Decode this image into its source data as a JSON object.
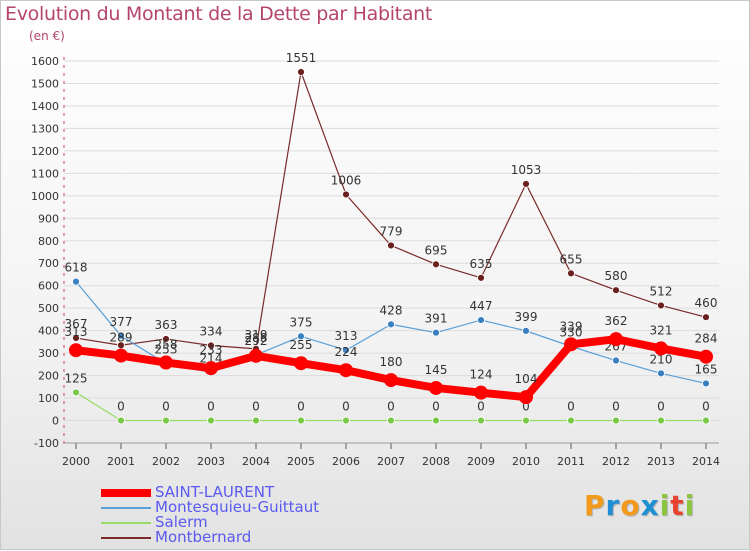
{
  "title": "Evolution du Montant de la Dette par Habitant",
  "unit": "(en €)",
  "logo": {
    "letters": [
      "P",
      "r",
      "o",
      "x",
      "i",
      "t",
      "i"
    ],
    "colors": [
      "#f39a1c",
      "#1e8fd5",
      "#f39a1c",
      "#1e8fd5",
      "#8cc63f",
      "#e8432c",
      "#8cc63f"
    ]
  },
  "chart_data": {
    "type": "line",
    "x": [
      "2000",
      "2001",
      "2002",
      "2003",
      "2004",
      "2005",
      "2006",
      "2007",
      "2008",
      "2009",
      "2010",
      "2011",
      "2012",
      "2013",
      "2014"
    ],
    "ylim": [
      -100,
      1600
    ],
    "yticks": [
      "-100",
      "0",
      "100",
      "200",
      "300",
      "400",
      "500",
      "600",
      "700",
      "800",
      "900",
      "1000",
      "1100",
      "1200",
      "1300",
      "1400",
      "1500",
      "1600"
    ],
    "legend_position": "bottom-left",
    "series": [
      {
        "name": "Montbernard",
        "color": "#7a2a2a",
        "marker": "#6b2020",
        "width": 1.2,
        "values": [
          367,
          335,
          363,
          334,
          319,
          1551,
          1006,
          779,
          695,
          635,
          1053,
          655,
          580,
          512,
          460
        ],
        "labels": [
          "367",
          "",
          "363",
          "334",
          "319",
          "1551",
          "1006",
          "779",
          "695",
          "635",
          "1053",
          "655",
          "580",
          "512",
          "460"
        ],
        "label_pos": "above"
      },
      {
        "name": "Montesquieu-Guittaut",
        "color": "#5aa0d8",
        "marker": "#3a7fc0",
        "width": 1.2,
        "values": [
          618,
          377,
          253,
          214,
          292,
          375,
          313,
          428,
          391,
          447,
          399,
          330,
          267,
          210,
          165
        ],
        "labels": [
          "618",
          "377",
          "253",
          "214",
          "292",
          "375",
          "313",
          "428",
          "391",
          "447",
          "399",
          "330",
          "267",
          "210",
          "165"
        ],
        "label_pos": "above"
      },
      {
        "name": "Salerm",
        "color": "#98dc6a",
        "marker": "#7ac848",
        "width": 1.2,
        "values": [
          125,
          0,
          0,
          0,
          0,
          0,
          0,
          0,
          0,
          0,
          0,
          0,
          0,
          0,
          0
        ],
        "labels": [
          "125",
          "0",
          "0",
          "0",
          "0",
          "0",
          "0",
          "0",
          "0",
          "0",
          "0",
          "0",
          "0",
          "0",
          "0"
        ],
        "label_pos": "above"
      },
      {
        "name": "SAINT-LAURENT",
        "color": "#ff0000",
        "marker": "#ff0000",
        "width": 8,
        "values": [
          313,
          289,
          258,
          233,
          288,
          255,
          224,
          180,
          145,
          124,
          104,
          339,
          362,
          321,
          284
        ],
        "labels": [
          "313",
          "289",
          "258",
          "233",
          "288",
          "255",
          "224",
          "180",
          "145",
          "124",
          "104",
          "339",
          "362",
          "321",
          "284"
        ],
        "label_pos": "above"
      }
    ],
    "legend": [
      "SAINT-LAURENT",
      "Montesquieu-Guittaut",
      "Salerm",
      "Montbernard"
    ]
  },
  "legend_styles": [
    {
      "color": "#ff0000",
      "width": 8
    },
    {
      "color": "#5aa0d8",
      "width": 2
    },
    {
      "color": "#98dc6a",
      "width": 2
    },
    {
      "color": "#7a2a2a",
      "width": 2
    }
  ]
}
